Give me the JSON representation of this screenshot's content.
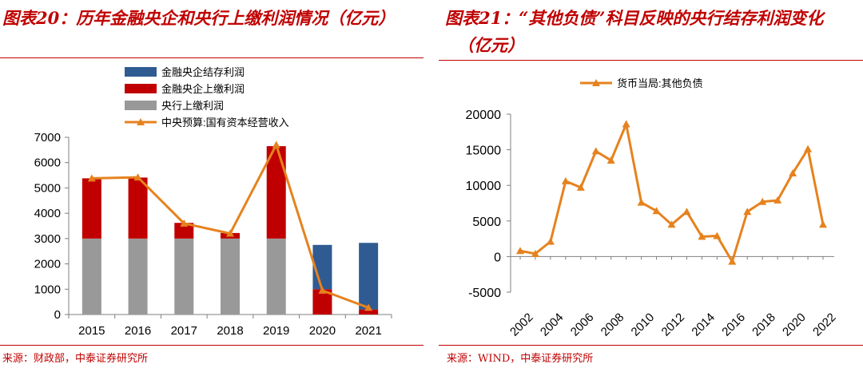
{
  "left": {
    "title": "图表20：历年金融央企和央行上缴利润情况（亿元）",
    "source": "来源：财政部，中泰证券研究所"
  },
  "right": {
    "title_line1": "图表21：“其他负债”科目反映的央行结存利润变化",
    "title_line2": "（亿元）",
    "source": "来源：WIND，中泰证券研究所"
  },
  "chart_data": [
    {
      "type": "bar",
      "stacked": true,
      "title": "历年金融央企和央行上缴利润情况（亿元）",
      "categories": [
        "2015",
        "2016",
        "2017",
        "2018",
        "2019",
        "2020",
        "2021"
      ],
      "series": [
        {
          "name": "央行上缴利润",
          "kind": "bar",
          "color": "#999999",
          "values": [
            3000,
            3000,
            3000,
            3000,
            3000,
            0,
            0
          ]
        },
        {
          "name": "金融央企上缴利润",
          "kind": "bar",
          "color": "#c00000",
          "values": [
            2380,
            2410,
            620,
            220,
            3650,
            1000,
            200
          ]
        },
        {
          "name": "金融央企结存利润",
          "kind": "bar",
          "color": "#2f5b92",
          "values": [
            0,
            0,
            0,
            0,
            0,
            1750,
            2630
          ]
        },
        {
          "name": "中央预算:国有资本经营收入",
          "kind": "line",
          "color": "#e6821e",
          "values": [
            5380,
            5420,
            3600,
            3200,
            6700,
            950,
            270
          ]
        }
      ],
      "legend_order": [
        "金融央企结存利润",
        "金融央企上缴利润",
        "央行上缴利润",
        "中央预算:国有资本经营收入"
      ],
      "ylim": [
        0,
        7000
      ],
      "yticks": [
        0,
        1000,
        2000,
        3000,
        4000,
        5000,
        6000,
        7000
      ],
      "xlabel": "",
      "ylabel": ""
    },
    {
      "type": "line",
      "title": "“其他负债”科目反映的央行结存利润变化（亿元）",
      "series": [
        {
          "name": "货币当局:其他负债",
          "color": "#e6821e",
          "x": [
            2002,
            2003,
            2004,
            2005,
            2006,
            2007,
            2008,
            2009,
            2010,
            2011,
            2012,
            2013,
            2014,
            2015,
            2016,
            2017,
            2018,
            2019,
            2020,
            2021,
            2022
          ],
          "values": [
            800,
            400,
            2100,
            10600,
            9700,
            14800,
            13500,
            18600,
            7600,
            6400,
            4500,
            6300,
            2800,
            2900,
            -700,
            6300,
            7700,
            7900,
            11700,
            15100,
            4500
          ]
        }
      ],
      "ylim": [
        -5000,
        20000
      ],
      "yticks": [
        -5000,
        0,
        5000,
        10000,
        15000,
        20000
      ],
      "xticks": [
        "2002",
        "2004",
        "2006",
        "2008",
        "2010",
        "2012",
        "2014",
        "2016",
        "2018",
        "2020",
        "2022"
      ],
      "xlabel": "",
      "ylabel": ""
    }
  ]
}
